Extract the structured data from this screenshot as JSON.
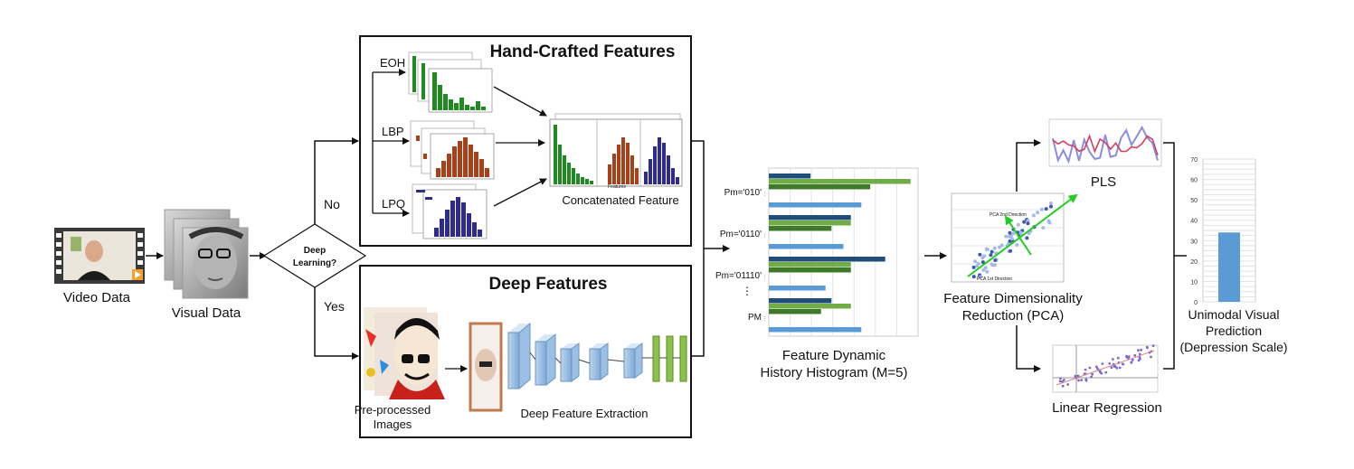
{
  "inputs": {
    "video_label": "Video Data",
    "visual_label": "Visual Data"
  },
  "decision": {
    "line1": "Deep",
    "line2": "Learning?",
    "no_label": "No",
    "yes_label": "Yes"
  },
  "handcrafted": {
    "title": "Hand-Crafted Features",
    "eoh_label": "EOH",
    "lbp_label": "LBP",
    "lpq_label": "LPQ",
    "concat_label": "Concatenated Feature",
    "features_caption": "Features"
  },
  "deep": {
    "title": "Deep Features",
    "preprocessed_line1": "Pre-processed",
    "preprocessed_line2": "Images",
    "extraction_label": "Deep Feature Extraction"
  },
  "fdhh": {
    "line1": "Feature Dynamic",
    "line2": "History Histogram (M=5)",
    "pattern_labels": [
      "Pm='010'",
      "Pm='0110'",
      "Pm='01110'",
      "PM"
    ],
    "bar_values": [
      [
        0.28,
        0.95,
        0.68,
        0.62
      ],
      [
        0.55,
        0.55,
        0.42,
        0.5
      ],
      [
        0.78,
        0.55,
        0.55,
        0.38
      ],
      [
        0.42,
        0.55,
        0.35,
        0.62
      ]
    ],
    "colors": {
      "navy": "#1f4e79",
      "light_green": "#70ad47",
      "dark_green": "#3f7a2a",
      "blue": "#5b9bd5"
    }
  },
  "pca": {
    "line1": "Feature Dimensionality",
    "line2": "Reduction (PCA)",
    "dir2_label": "PCA 2nd Direction",
    "dir1_label": "PCA 1st Direction"
  },
  "regressors": {
    "pls_label": "PLS",
    "lr_label": "Linear Regression"
  },
  "prediction": {
    "line1": "Unimodal Visual",
    "line2": "Prediction",
    "line3": "(Depression Scale)",
    "ticks": [
      "0",
      "10",
      "20",
      "30",
      "40",
      "50",
      "60",
      "70"
    ],
    "ylim": [
      0,
      70
    ],
    "value": 34,
    "bar_color": "#5b9bd5"
  }
}
